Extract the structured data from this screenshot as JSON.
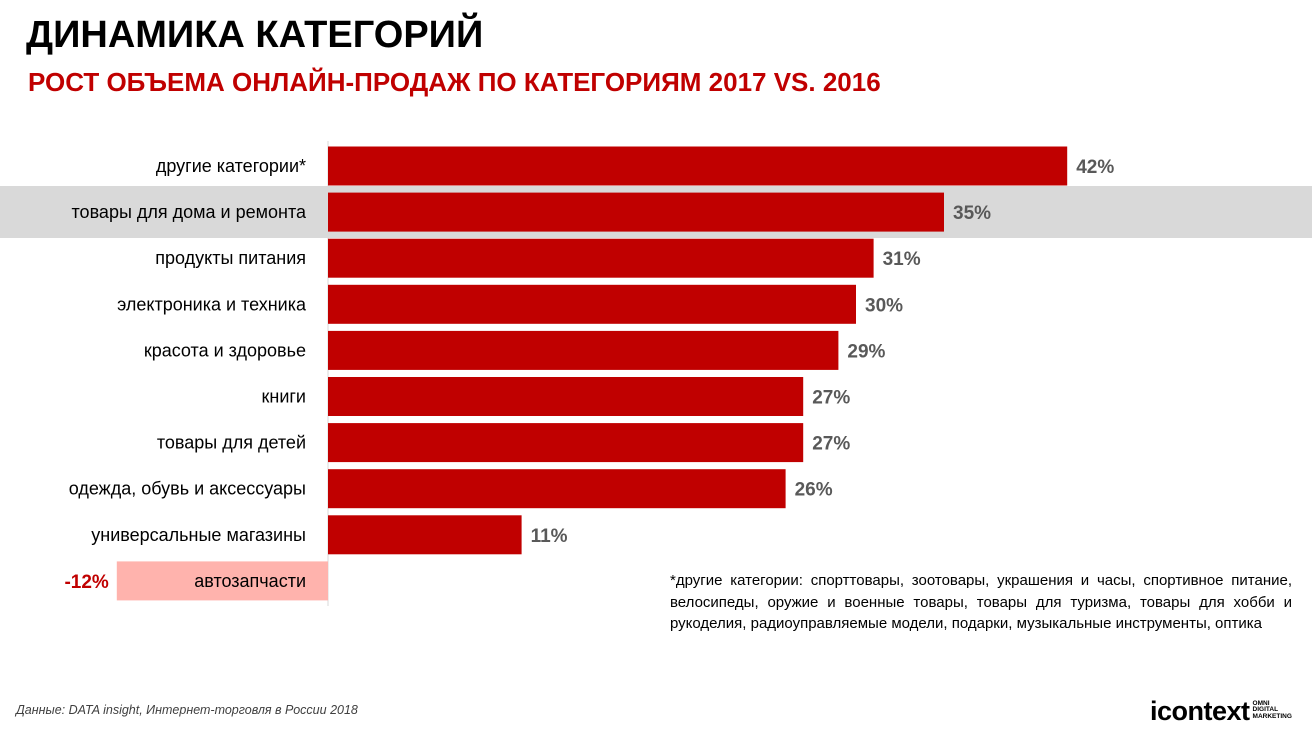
{
  "header": {
    "title": "ДИНАМИКА КАТЕГОРИЙ",
    "subtitle": "РОСТ ОБЪЕМА ОНЛАЙН-ПРОДАЖ ПО КАТЕГОРИЯМ 2017 VS. 2016"
  },
  "chart_data": {
    "type": "bar",
    "orientation": "horizontal",
    "title": "РОСТ ОБЪЕМА ОНЛАЙН-ПРОДАЖ ПО КАТЕГОРИЯМ 2017 VS. 2016",
    "categories": [
      "другие категории*",
      "товары для дома и ремонта",
      "продукты питания",
      "электроника и техника",
      "красота и здоровье",
      "книги",
      "товары для детей",
      "одежда, обувь и аксессуары",
      "универсальные магазины",
      "автозапчасти"
    ],
    "values": [
      42,
      35,
      31,
      30,
      29,
      27,
      27,
      26,
      11,
      -12
    ],
    "value_labels": [
      "42%",
      "35%",
      "31%",
      "30%",
      "29%",
      "27%",
      "27%",
      "26%",
      "11%",
      "-12%"
    ],
    "highlighted_category": "товары для дома и ремонта",
    "colors": {
      "positive_bar": "#c00000",
      "negative_bar": "#ffb3ad",
      "highlight_band": "#d9d9d9",
      "value_label": "#595959",
      "negative_value_label": "#c00000"
    },
    "xlim": [
      -15,
      45
    ],
    "grid": false,
    "legend": "none"
  },
  "footnote": "*другие категории: спорттовары, зоотовары, украшения и часы, спортивное питание, велосипеды, оружие и военные товары, товары для туризма, товары для хобби и рукоделия, радиоуправляемые модели, подарки, музыкальные инструменты, оптика",
  "source": "Данные: DATA insight, Интернет-торговля в  России 2018",
  "logo": {
    "word": "icontext",
    "tagline": [
      "OMNI",
      "DIGITAL",
      "MARKETING"
    ]
  }
}
